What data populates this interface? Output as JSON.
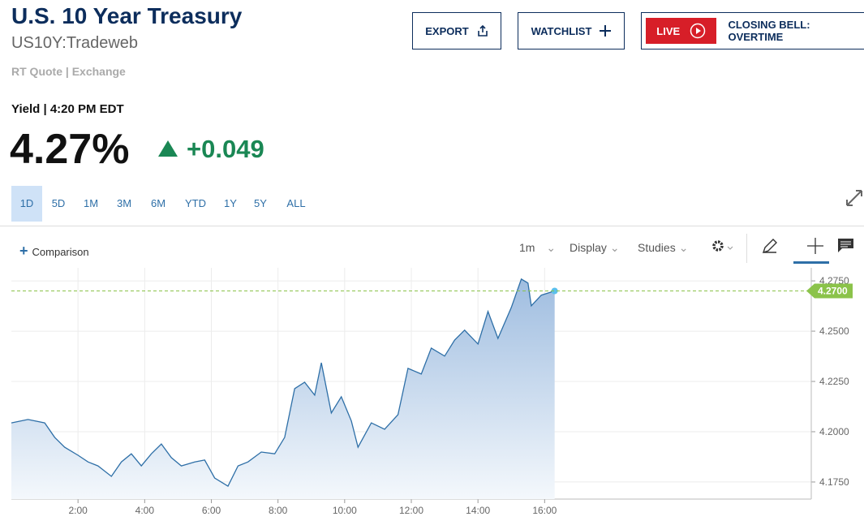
{
  "header": {
    "title": "U.S. 10 Year Treasury",
    "symbol": "US10Y:Tradeweb",
    "quote_source": "RT Quote | Exchange",
    "yield_time": "Yield | 4:20 PM EDT",
    "price": "4.27%",
    "change": "+0.049"
  },
  "buttons": {
    "export": "EXPORT",
    "watchlist": "WATCHLIST",
    "live": "LIVE",
    "live_show": "CLOSING BELL: OVERTIME"
  },
  "ranges": [
    "1D",
    "5D",
    "1M",
    "3M",
    "6M",
    "YTD",
    "1Y",
    "5Y",
    "ALL"
  ],
  "toolbar": {
    "comparison": "Comparison",
    "interval": "1m",
    "display": "Display",
    "studies": "Studies"
  },
  "chart_data": {
    "type": "line",
    "color": "#2e6fa7",
    "x": [
      0,
      0.5,
      1.0,
      1.3,
      1.6,
      2.0,
      2.3,
      2.6,
      3.0,
      3.3,
      3.6,
      3.9,
      4.2,
      4.5,
      4.8,
      5.1,
      5.5,
      5.8,
      6.1,
      6.5,
      6.8,
      7.1,
      7.5,
      7.9,
      8.2,
      8.5,
      8.8,
      9.1,
      9.3,
      9.6,
      9.9,
      10.2,
      10.4,
      10.8,
      11.2,
      11.6,
      11.9,
      12.3,
      12.6,
      13.0,
      13.3,
      13.6,
      14.0,
      14.3,
      14.6,
      15.0,
      15.3,
      15.5,
      15.6,
      15.9,
      16.3
    ],
    "values": [
      4.2044,
      4.2061,
      4.2044,
      4.1972,
      4.1923,
      4.1883,
      4.185,
      4.183,
      4.1778,
      4.185,
      4.189,
      4.183,
      4.189,
      4.1939,
      4.1871,
      4.183,
      4.185,
      4.1859,
      4.177,
      4.1729,
      4.183,
      4.185,
      4.1899,
      4.189,
      4.1972,
      4.2214,
      4.2246,
      4.2182,
      4.2343,
      4.2093,
      4.2174,
      4.2053,
      4.1923,
      4.2044,
      4.2012,
      4.2085,
      4.2315,
      4.2287,
      4.2416,
      4.2376,
      4.2456,
      4.2505,
      4.2436,
      4.2598,
      4.2464,
      4.2618,
      4.2759,
      4.2739,
      4.2626,
      4.2679,
      4.27
    ],
    "xlim": [
      0,
      24
    ],
    "xticks": [
      {
        "value": 2,
        "label": "2:00"
      },
      {
        "value": 4,
        "label": "4:00"
      },
      {
        "value": 6,
        "label": "6:00"
      },
      {
        "value": 8,
        "label": "8:00"
      },
      {
        "value": 10,
        "label": "10:00"
      },
      {
        "value": 12,
        "label": "12:00"
      },
      {
        "value": 14,
        "label": "14:00"
      },
      {
        "value": 16,
        "label": "16:00"
      }
    ],
    "ylim": [
      4.1665,
      4.2815
    ],
    "yticks": [
      {
        "value": 4.175,
        "label": "4.1750"
      },
      {
        "value": 4.2,
        "label": "4.2000"
      },
      {
        "value": 4.225,
        "label": "4.2250"
      },
      {
        "value": 4.25,
        "label": "4.2500"
      },
      {
        "value": 4.275,
        "label": "4.2750"
      }
    ],
    "grid": true,
    "last_value": {
      "value": 4.27,
      "label": "4.2700"
    }
  }
}
